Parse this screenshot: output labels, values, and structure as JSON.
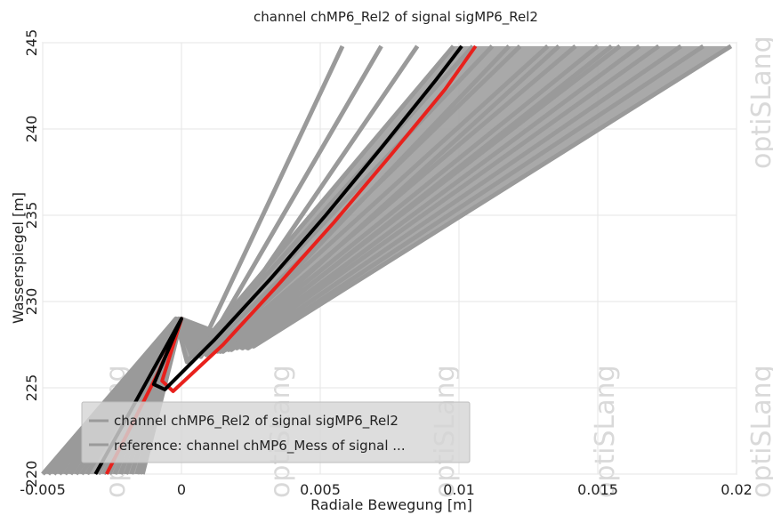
{
  "chart_data": {
    "type": "line",
    "title": "channel chMP6_Rel2 of signal sigMP6_Rel2",
    "xlabel": "Radiale Bewegung [m]",
    "ylabel": "Wasserspiegel [m]",
    "xlim": [
      -0.005,
      0.02
    ],
    "ylim": [
      220,
      245
    ],
    "xticks": [
      "-0.005",
      "0",
      "0.005",
      "0.01",
      "0.015",
      "0.02"
    ],
    "xtick_values": [
      -0.005,
      0,
      0.005,
      0.01,
      0.015,
      0.02
    ],
    "yticks": [
      "220",
      "225",
      "230",
      "235",
      "240",
      "245"
    ],
    "ytick_values": [
      220,
      225,
      230,
      235,
      240,
      245
    ],
    "grid": true,
    "legend": {
      "placement": "bottom-left",
      "entries": [
        "channel chMP6_Rel2 of signal sigMP6_Rel2",
        "reference: channel chMP6_Mess of signal ..."
      ]
    },
    "series": [
      {
        "color": "#9a9a9a",
        "kind": "ensemble",
        "lines": [
          {
            "x": [
              -0.005,
              -0.0002,
              0.0002,
              0.0098
            ],
            "y": [
              220,
              229,
              226.5,
              244.8
            ]
          },
          {
            "x": [
              -0.0048,
              -0.0002,
              0.0004,
              0.0105
            ],
            "y": [
              220,
              229,
              226.8,
              244.8
            ]
          },
          {
            "x": [
              -0.0046,
              -0.0001,
              0.0006,
              0.0112
            ],
            "y": [
              220,
              229,
              226.9,
              244.8
            ]
          },
          {
            "x": [
              -0.0042,
              -0.0001,
              0.0008,
              0.0122
            ],
            "y": [
              220,
              229,
              227.0,
              244.8
            ]
          },
          {
            "x": [
              -0.0038,
              0.0,
              0.001,
              0.0132
            ],
            "y": [
              220,
              229,
              227.0,
              244.8
            ]
          },
          {
            "x": [
              -0.0034,
              0.0,
              0.0012,
              0.0142
            ],
            "y": [
              220,
              229,
              227.1,
              244.8
            ]
          },
          {
            "x": [
              -0.003,
              0.0,
              0.0014,
              0.015
            ],
            "y": [
              220,
              229,
              227.1,
              244.8
            ]
          },
          {
            "x": [
              -0.0026,
              0.0,
              0.0016,
              0.0158
            ],
            "y": [
              220,
              229,
              227.2,
              244.8
            ]
          },
          {
            "x": [
              -0.0022,
              0.0,
              0.0018,
              0.0165
            ],
            "y": [
              220,
              229,
              227.2,
              244.8
            ]
          },
          {
            "x": [
              -0.0018,
              0.0,
              0.002,
              0.0172
            ],
            "y": [
              220,
              229,
              227.3,
              244.8
            ]
          },
          {
            "x": [
              -0.0016,
              0.0,
              0.0022,
              0.018
            ],
            "y": [
              220,
              229,
              227.3,
              244.8
            ]
          },
          {
            "x": [
              -0.0015,
              0.0,
              0.0024,
              0.0188
            ],
            "y": [
              220,
              229,
              227.3,
              244.8
            ]
          },
          {
            "x": [
              -0.0014,
              0.0,
              0.0026,
              0.0198
            ],
            "y": [
              220,
              229,
              227.4,
              244.8
            ]
          },
          {
            "x": [
              -0.0044,
              -0.0002,
              0.0005,
              0.0058
            ],
            "y": [
              220,
              229,
              226.7,
              244.8
            ]
          },
          {
            "x": [
              -0.004,
              -0.0001,
              0.0007,
              0.0072
            ],
            "y": [
              220,
              229,
              226.8,
              244.8
            ]
          },
          {
            "x": [
              -0.0036,
              0.0,
              0.0009,
              0.0085
            ],
            "y": [
              220,
              229,
              226.9,
              244.8
            ]
          },
          {
            "x": [
              -0.0028,
              0.0,
              0.0013,
              0.0118
            ],
            "y": [
              220,
              229,
              227.1,
              244.8
            ]
          },
          {
            "x": [
              -0.0024,
              0.0,
              0.0015,
              0.0136
            ],
            "y": [
              220,
              229,
              227.1,
              244.8
            ]
          },
          {
            "x": [
              -0.002,
              0.0,
              0.0017,
              0.0155
            ],
            "y": [
              220,
              229,
              227.2,
              244.8
            ]
          }
        ]
      },
      {
        "color": "#e8211c",
        "kind": "reference",
        "x": [
          -0.0027,
          -0.0019,
          -0.0008,
          0.0,
          -0.0007,
          -0.0003,
          0.0015,
          0.0035,
          0.0055,
          0.0075,
          0.0095,
          0.0106
        ],
        "y": [
          220,
          222.5,
          226,
          229,
          225.4,
          224.8,
          227.5,
          231,
          234.6,
          238.4,
          242.3,
          244.8
        ]
      },
      {
        "color": "#000000",
        "kind": "main",
        "x": [
          -0.0031,
          -0.0022,
          -0.001,
          0.0,
          -0.001,
          -0.0006,
          0.0012,
          0.0032,
          0.0052,
          0.0072,
          0.0092,
          0.0101
        ],
        "y": [
          220,
          222.6,
          226.1,
          229,
          225.2,
          224.9,
          227.8,
          231.3,
          235,
          238.9,
          242.9,
          244.8
        ]
      }
    ]
  },
  "watermark": "optiSLang"
}
